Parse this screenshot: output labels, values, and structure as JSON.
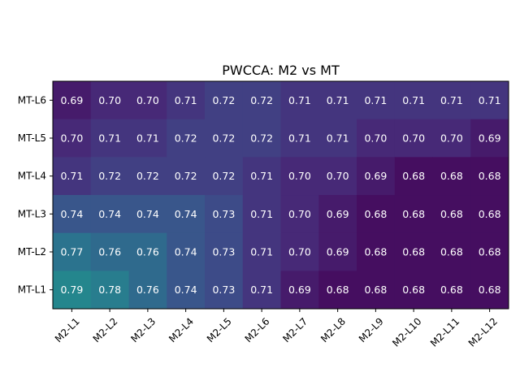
{
  "chart_data": {
    "type": "heatmap",
    "title": "PWCCA: M2 vs MT",
    "xlabel": "",
    "ylabel": "",
    "x_categories": [
      "M2-L1",
      "M2-L2",
      "M2-L3",
      "M2-L4",
      "M2-L5",
      "M2-L6",
      "M2-L7",
      "M2-L8",
      "M2-L9",
      "M2-L10",
      "M2-L11",
      "M2-L12"
    ],
    "y_categories": [
      "MT-L6",
      "MT-L5",
      "MT-L4",
      "MT-L3",
      "MT-L2",
      "MT-L1"
    ],
    "values": [
      [
        0.69,
        0.7,
        0.7,
        0.71,
        0.72,
        0.72,
        0.71,
        0.71,
        0.71,
        0.71,
        0.71,
        0.71
      ],
      [
        0.7,
        0.71,
        0.71,
        0.72,
        0.72,
        0.72,
        0.71,
        0.71,
        0.7,
        0.7,
        0.7,
        0.69
      ],
      [
        0.71,
        0.72,
        0.72,
        0.72,
        0.72,
        0.71,
        0.7,
        0.7,
        0.69,
        0.68,
        0.68,
        0.68
      ],
      [
        0.74,
        0.74,
        0.74,
        0.74,
        0.73,
        0.71,
        0.7,
        0.69,
        0.68,
        0.68,
        0.68,
        0.68
      ],
      [
        0.77,
        0.76,
        0.76,
        0.74,
        0.73,
        0.71,
        0.7,
        0.69,
        0.68,
        0.68,
        0.68,
        0.68
      ],
      [
        0.79,
        0.78,
        0.76,
        0.74,
        0.73,
        0.71,
        0.69,
        0.68,
        0.68,
        0.68,
        0.68,
        0.68
      ]
    ],
    "colormap": "viridis",
    "value_range": [
      0.67,
      0.93
    ],
    "colorbar": false,
    "grid": false
  }
}
